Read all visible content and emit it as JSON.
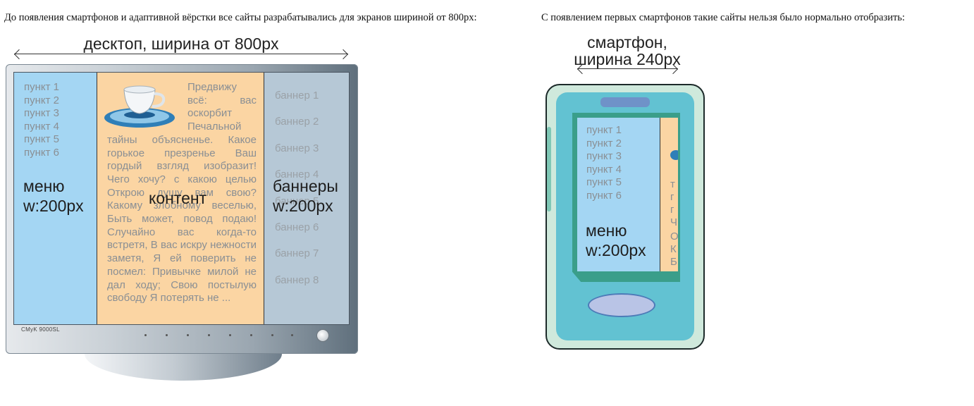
{
  "captions": {
    "left": "До появления смартфонов и адаптивной вёрстки все сайты разрабатывались для экранов шириной от 800px:",
    "right": "С появлением первых смартфонов такие сайты нельзя было нормально отобразить:"
  },
  "desktop": {
    "width_label": "десктоп, ширина от 800px",
    "menu_items": [
      "пункт 1",
      "пункт 2",
      "пункт 3",
      "пункт 4",
      "пункт 5",
      "пункт 6"
    ],
    "menu_label_1": "меню",
    "menu_label_2": "w:200px",
    "content_label": "контент",
    "content_text": "Предвижу всё: вас оскорбит Печальной тайны объясненье. Какое горькое презренье Ваш гордый взгляд изобразит! Чего хочу? с какою целью Открою душу вам свою? Какому злобному веселью, Быть может, повод подаю! Случайно вас когда-то встретя, В вас искру нежности заметя, Я ей поверить не посмел: Привычке милой не дал ходу; Свою постылую свободу Я потерять не ...",
    "banners": [
      "баннер 1",
      "баннер 2",
      "баннер 3",
      "баннер 4",
      "баннер 5",
      "баннер 6",
      "баннер 7",
      "баннер 8"
    ],
    "banners_label_1": "баннеры",
    "banners_label_2": "w:200px",
    "brand": "CMyK 9000SL"
  },
  "phone": {
    "width_label_1": "смартфон,",
    "width_label_2": "ширина 240px",
    "menu_items": [
      "пункт 1",
      "пункт 2",
      "пункт 3",
      "пункт 4",
      "пункт 5",
      "пункт 6"
    ],
    "menu_label_1": "меню",
    "menu_label_2": "w:200px",
    "content_fragments": [
      "т",
      "г",
      "г",
      "Ч",
      "О",
      "К",
      "Б"
    ]
  },
  "colors": {
    "menu": "#a4d6f3",
    "content": "#fbd5a3",
    "banners": "#b6c8d6"
  }
}
